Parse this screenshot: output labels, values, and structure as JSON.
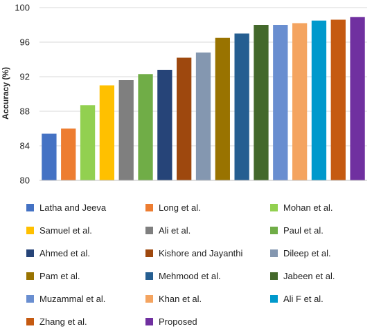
{
  "chart_data": {
    "type": "bar",
    "title": "",
    "xlabel": "",
    "ylabel": "Accuracy (%)",
    "ylim": [
      80,
      100
    ],
    "yticks": [
      "80",
      "84",
      "88",
      "92",
      "96",
      "100"
    ],
    "grid": true,
    "legend_position": "bottom",
    "series": [
      {
        "name": "Latha and Jeeva",
        "value": 85.4,
        "color": "#4472C4"
      },
      {
        "name": "Long et al.",
        "value": 86.0,
        "color": "#ED7D31"
      },
      {
        "name": "Mohan et al.",
        "value": 88.7,
        "color": "#92D050"
      },
      {
        "name": "Samuel et al.",
        "value": 91.0,
        "color": "#FFC000"
      },
      {
        "name": "Ali et al.",
        "value": 91.6,
        "color": "#7F7F7F"
      },
      {
        "name": "Paul et al.",
        "value": 92.3,
        "color": "#70AD47"
      },
      {
        "name": "Ahmed et al.",
        "value": 92.8,
        "color": "#264478"
      },
      {
        "name": "Kishore and Jayanthi",
        "value": 94.2,
        "color": "#9E480E"
      },
      {
        "name": "Dileep et al.",
        "value": 94.8,
        "color": "#8497B0"
      },
      {
        "name": "Pam et al.",
        "value": 96.5,
        "color": "#997300"
      },
      {
        "name": "Mehmood et al.",
        "value": 97.0,
        "color": "#255E91"
      },
      {
        "name": "Jabeen et al.",
        "value": 98.0,
        "color": "#43682B"
      },
      {
        "name": "Muzammal et al.",
        "value": 98.0,
        "color": "#698ED0"
      },
      {
        "name": "Khan et al.",
        "value": 98.2,
        "color": "#F4A460"
      },
      {
        "name": "Ali F et al.",
        "value": 98.5,
        "color": "#0099CC"
      },
      {
        "name": "Zhang et al.",
        "value": 98.6,
        "color": "#C55A11"
      },
      {
        "name": "Proposed",
        "value": 98.9,
        "color": "#7030A0"
      }
    ]
  }
}
